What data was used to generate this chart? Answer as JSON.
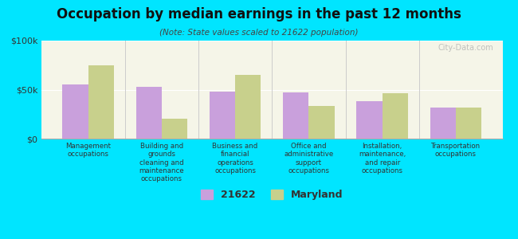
{
  "title": "Occupation by median earnings in the past 12 months",
  "subtitle": "(Note: State values scaled to 21622 population)",
  "categories": [
    "Management\noccupations",
    "Building and\ngrounds\ncleaning and\nmaintenance\noccupations",
    "Business and\nfinancial\noperations\noccupations",
    "Office and\nadministrative\nsupport\noccupations",
    "Installation,\nmaintenance,\nand repair\noccupations",
    "Transportation\noccupations"
  ],
  "values_21622": [
    55000,
    53000,
    48000,
    47000,
    38000,
    32000
  ],
  "values_maryland": [
    75000,
    20000,
    65000,
    33000,
    46000,
    32000
  ],
  "color_21622": "#c9a0dc",
  "color_maryland": "#c8d08c",
  "background_color": "#00e5ff",
  "plot_bg_top": "#f5f5e8",
  "plot_bg_bottom": "#e8f0e0",
  "ylim": [
    0,
    100000
  ],
  "yticks": [
    0,
    50000,
    100000
  ],
  "ytick_labels": [
    "$0",
    "$50k",
    "$100k"
  ],
  "legend_label_21622": "21622",
  "legend_label_maryland": "Maryland",
  "watermark": "City-Data.com",
  "bar_width": 0.35
}
